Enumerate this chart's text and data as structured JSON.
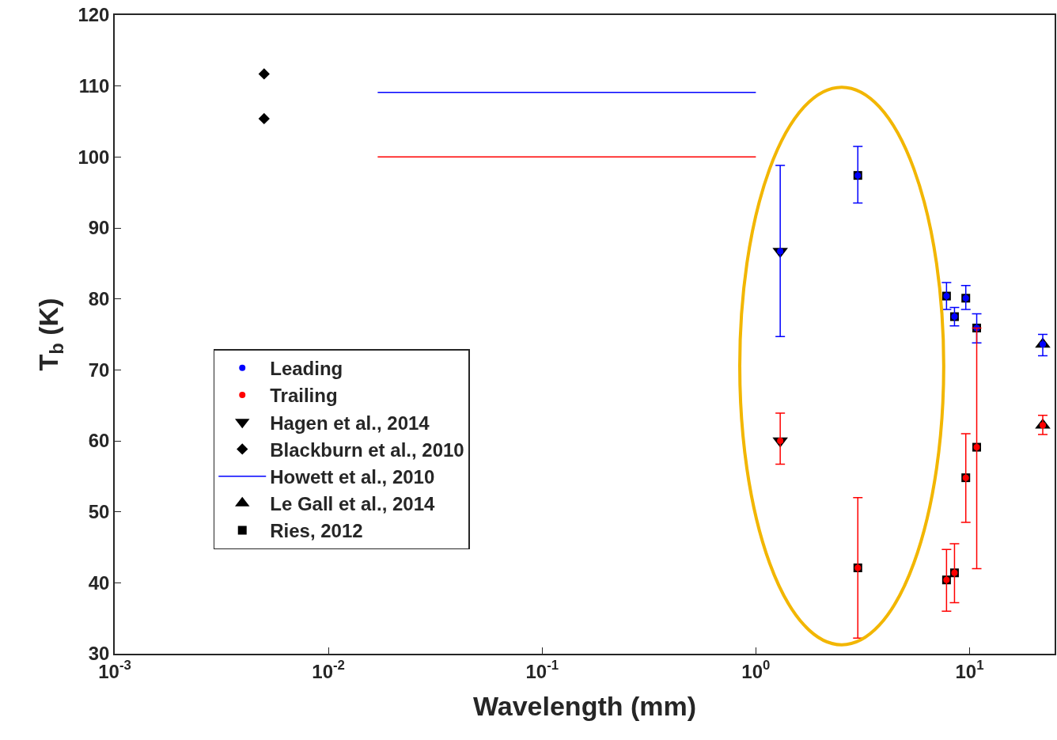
{
  "chart_data": {
    "type": "scatter",
    "xlabel": "Wavelength (mm)",
    "ylabel": "T$_{b}$ (K)",
    "log": "x",
    "xlim": [
      0.001,
      25
    ],
    "xticks": [
      {
        "value": 0.001,
        "label": "10$^{-3}$"
      },
      {
        "value": 0.01,
        "label": "10$^{-2}$"
      },
      {
        "value": 0.1,
        "label": "10$^{-1}$"
      },
      {
        "value": 1,
        "label": "10$^{0}$"
      },
      {
        "value": 10,
        "label": "10$^{1}$"
      }
    ],
    "ylim": [
      30,
      120
    ],
    "yticks": [
      30,
      40,
      50,
      60,
      70,
      80,
      90,
      100,
      110,
      120
    ],
    "legend": "left",
    "series": [
      {
        "name": "Leading",
        "color": "#0000ff",
        "marker": "circle",
        "x": [
          1.3,
          3.0,
          7.8,
          8.5,
          9.6,
          10.8,
          22
        ],
        "values": [
          86.7,
          97.4,
          80.4,
          77.5,
          80.1,
          75.9,
          73.6
        ],
        "errors": [
          [
            74.7,
            98.8
          ],
          [
            93.5,
            101.5
          ],
          [
            78.5,
            82.3
          ],
          [
            76.2,
            78.8
          ],
          [
            78.5,
            81.9
          ],
          [
            73.8,
            77.9
          ],
          [
            72.0,
            75.0
          ]
        ]
      },
      {
        "name": "Trailing",
        "color": "#ff0000",
        "marker": "circle",
        "x": [
          1.3,
          3.0,
          7.8,
          8.5,
          9.6,
          10.8,
          22
        ],
        "values": [
          60.0,
          42.1,
          40.4,
          41.4,
          54.8,
          59.1,
          62.2
        ],
        "errors": [
          [
            56.7,
            63.9
          ],
          [
            32.2,
            52.0
          ],
          [
            36.0,
            44.7
          ],
          [
            37.2,
            45.5
          ],
          [
            48.5,
            61.0
          ],
          [
            42.0,
            75.9
          ],
          [
            60.9,
            63.6
          ]
        ]
      },
      {
        "name": "Hagen et al., 2014",
        "color": "#000000",
        "marker": "triangle-down",
        "x": [
          1.3,
          1.3
        ],
        "values": [
          86.7,
          60.0
        ]
      },
      {
        "name": "Blackburn et al., 2010",
        "color": "#000000",
        "marker": "diamond",
        "x": [
          0.005,
          0.005
        ],
        "values": [
          111.7,
          105.4
        ]
      },
      {
        "name": "Howett et al., 2010",
        "color": "#0000ff",
        "type": "line",
        "marker": "none",
        "x": [
          0.017,
          1.0
        ],
        "values": [
          109.1,
          109.1
        ]
      },
      {
        "color": "#ff0000",
        "type": "line",
        "marker": "none",
        "x": [
          0.017,
          1.0
        ],
        "values": [
          100.0,
          100.0
        ]
      },
      {
        "name": "Le Gall et al., 2014",
        "color": "#000000",
        "marker": "triangle",
        "x": [
          22,
          22
        ],
        "values": [
          73.6,
          62.2
        ]
      },
      {
        "name": "Ries, 2012",
        "color": "#000000",
        "marker": "square",
        "x": [
          3.0,
          7.8,
          8.5,
          9.6,
          10.8,
          3.0,
          7.8,
          8.5,
          9.6,
          10.8
        ],
        "values": [
          97.4,
          80.4,
          77.5,
          80.1,
          75.9,
          42.1,
          40.4,
          41.4,
          54.8,
          59.1
        ]
      }
    ]
  }
}
